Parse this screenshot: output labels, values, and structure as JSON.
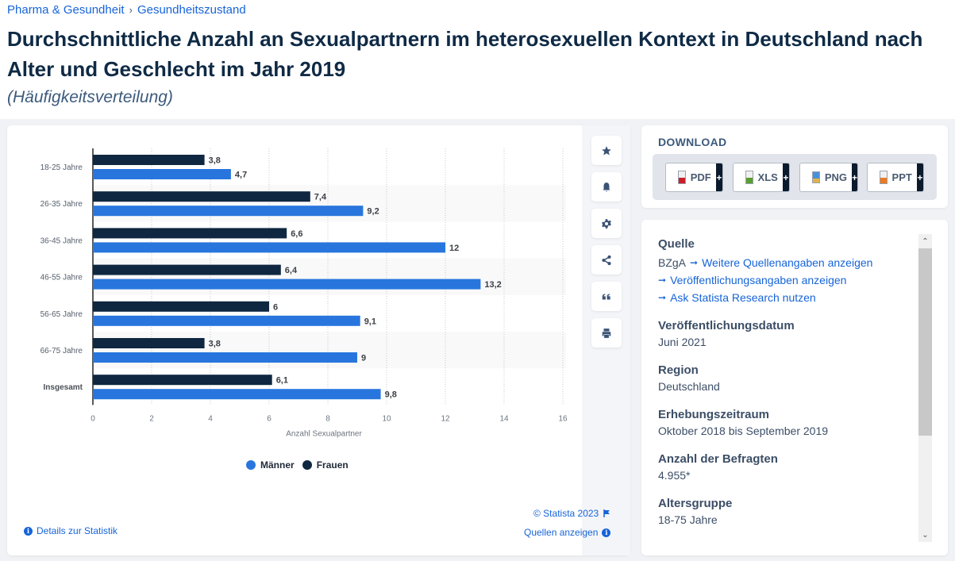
{
  "breadcrumb": {
    "items": [
      "Pharma & Gesundheit",
      "Gesundheitszustand"
    ],
    "separator": "›"
  },
  "header": {
    "title": "Durchschnittliche Anzahl an Sexualpartnern im heterosexuellen Kontext in Deutschland nach Alter und Geschlecht im Jahr 2019",
    "subtitle": "(Häufigkeitsverteilung)"
  },
  "colors": {
    "maenner": "#2876dd",
    "frauen": "#0f2740",
    "link": "#1664d9"
  },
  "chart_data": {
    "type": "bar",
    "orientation": "horizontal",
    "title": "",
    "categories": [
      "18-25 Jahre",
      "26-35 Jahre",
      "36-45 Jahre",
      "46-55 Jahre",
      "56-65 Jahre",
      "66-75 Jahre",
      "Insgesamt"
    ],
    "series": [
      {
        "name": "Frauen",
        "color": "#0f2740",
        "values": [
          3.8,
          7.4,
          6.6,
          6.4,
          6,
          3.8,
          6.1
        ],
        "labels": [
          "3,8",
          "7,4",
          "6,6",
          "6,4",
          "6",
          "3,8",
          "6,1"
        ]
      },
      {
        "name": "Männer",
        "color": "#2876dd",
        "values": [
          4.7,
          9.2,
          12,
          13.2,
          9.1,
          9,
          9.8
        ],
        "labels": [
          "4,7",
          "9,2",
          "12",
          "13,2",
          "9,1",
          "9",
          "9,8"
        ]
      }
    ],
    "xlabel": "Anzahl Sexualpartner",
    "ylabel": "",
    "xlim": [
      0,
      16
    ],
    "xticks": [
      0,
      2,
      4,
      6,
      8,
      10,
      12,
      14,
      16
    ],
    "grid": true,
    "legend": {
      "position": "bottom-center",
      "entries": [
        "Männer",
        "Frauen"
      ]
    }
  },
  "footer": {
    "copyright": "© Statista 2023",
    "details_link": "Details zur Statistik",
    "sources_link": "Quellen anzeigen"
  },
  "tools": [
    "star-icon",
    "bell-icon",
    "gear-icon",
    "share-icon",
    "quote-icon",
    "print-icon"
  ],
  "download": {
    "title": "DOWNLOAD",
    "buttons": [
      {
        "label": "PDF",
        "plus": "+"
      },
      {
        "label": "XLS",
        "plus": "+"
      },
      {
        "label": "PNG",
        "plus": "+"
      },
      {
        "label": "PPT",
        "plus": "+"
      }
    ]
  },
  "info": {
    "source_heading": "Quelle",
    "source_name": "BZgA",
    "links": [
      "Weitere Quellenangaben anzeigen",
      "Veröffentlichungsangaben anzeigen",
      "Ask Statista Research nutzen"
    ],
    "fields": [
      {
        "label": "Veröffentlichungsdatum",
        "value": "Juni 2021"
      },
      {
        "label": "Region",
        "value": "Deutschland"
      },
      {
        "label": "Erhebungszeitraum",
        "value": "Oktober 2018 bis September 2019"
      },
      {
        "label": "Anzahl der Befragten",
        "value": "4.955*"
      },
      {
        "label": "Altersgruppe",
        "value": "18-75 Jahre"
      }
    ]
  }
}
